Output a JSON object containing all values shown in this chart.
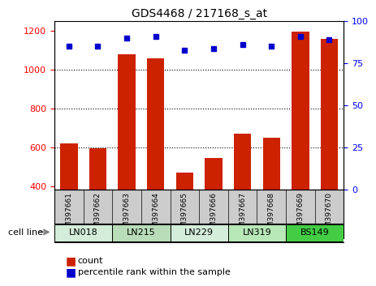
{
  "title": "GDS4468 / 217168_s_at",
  "samples": [
    "GSM397661",
    "GSM397662",
    "GSM397663",
    "GSM397664",
    "GSM397665",
    "GSM397666",
    "GSM397667",
    "GSM397668",
    "GSM397669",
    "GSM397670"
  ],
  "counts": [
    620,
    595,
    1080,
    1060,
    470,
    545,
    670,
    650,
    1195,
    1160
  ],
  "percentiles": [
    85,
    85,
    90,
    91,
    83,
    84,
    86,
    85,
    91,
    89
  ],
  "cell_lines": [
    {
      "name": "LN018",
      "start": 0,
      "end": 2,
      "color": "#d4edda"
    },
    {
      "name": "LN215",
      "start": 2,
      "end": 4,
      "color": "#b8ddb8"
    },
    {
      "name": "LN229",
      "start": 4,
      "end": 6,
      "color": "#d4edda"
    },
    {
      "name": "LN319",
      "start": 6,
      "end": 8,
      "color": "#b8e8b8"
    },
    {
      "name": "BS149",
      "start": 8,
      "end": 10,
      "color": "#44cc44"
    }
  ],
  "bar_color": "#cc2200",
  "dot_color": "#0000cc",
  "ylim_left": [
    380,
    1250
  ],
  "ylim_right": [
    0,
    100
  ],
  "yticks_left": [
    400,
    600,
    800,
    1000,
    1200
  ],
  "yticks_right": [
    0,
    25,
    50,
    75,
    100
  ],
  "grid_lines": [
    600,
    800,
    1000
  ],
  "bar_width": 0.6,
  "background_color": "#ffffff",
  "sample_label_bg": "#cccccc"
}
